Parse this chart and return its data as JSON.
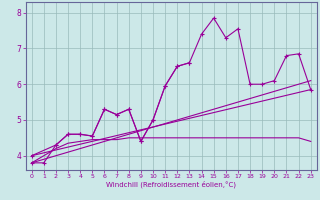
{
  "x": [
    0,
    1,
    2,
    3,
    4,
    5,
    6,
    7,
    8,
    9,
    10,
    11,
    12,
    13,
    14,
    15,
    16,
    17,
    18,
    19,
    20,
    21,
    22,
    23
  ],
  "line1": [
    3.8,
    3.8,
    4.3,
    4.6,
    4.6,
    4.55,
    5.3,
    5.15,
    5.3,
    4.4,
    5.0,
    5.95,
    6.5,
    6.6,
    7.4,
    7.85,
    7.3,
    7.55,
    6.0,
    6.0,
    6.1,
    6.8,
    6.85,
    5.85
  ],
  "line2": [
    4.0,
    null,
    4.3,
    4.6,
    4.6,
    4.55,
    5.3,
    5.15,
    5.3,
    4.4,
    5.0,
    5.95,
    6.5,
    6.6,
    null,
    null,
    null,
    null,
    null,
    null,
    null,
    null,
    null,
    null
  ],
  "line3_x": [
    0,
    2,
    3,
    4,
    5,
    6,
    7,
    8,
    9,
    10,
    11,
    12,
    13,
    14,
    15,
    16,
    17,
    18,
    19,
    20,
    21,
    22,
    23
  ],
  "line3_y": [
    3.8,
    4.2,
    4.35,
    4.4,
    4.45,
    4.45,
    4.45,
    4.5,
    4.5,
    4.5,
    4.5,
    4.5,
    4.5,
    4.5,
    4.5,
    4.5,
    4.5,
    4.5,
    4.5,
    4.5,
    4.5,
    4.5,
    4.4
  ],
  "line4_x": [
    0,
    23
  ],
  "line4_y": [
    3.8,
    6.1
  ],
  "line5_x": [
    0,
    23
  ],
  "line5_y": [
    4.0,
    5.85
  ],
  "color": "#990099",
  "bg_color": "#cce8e8",
  "grid_color": "#99bbbb",
  "xlabel": "Windchill (Refroidissement éolien,°C)",
  "ylim": [
    3.6,
    8.3
  ],
  "xlim": [
    -0.5,
    23.5
  ],
  "yticks": [
    4,
    5,
    6,
    7,
    8
  ],
  "xticks": [
    0,
    1,
    2,
    3,
    4,
    5,
    6,
    7,
    8,
    9,
    10,
    11,
    12,
    13,
    14,
    15,
    16,
    17,
    18,
    19,
    20,
    21,
    22,
    23
  ]
}
